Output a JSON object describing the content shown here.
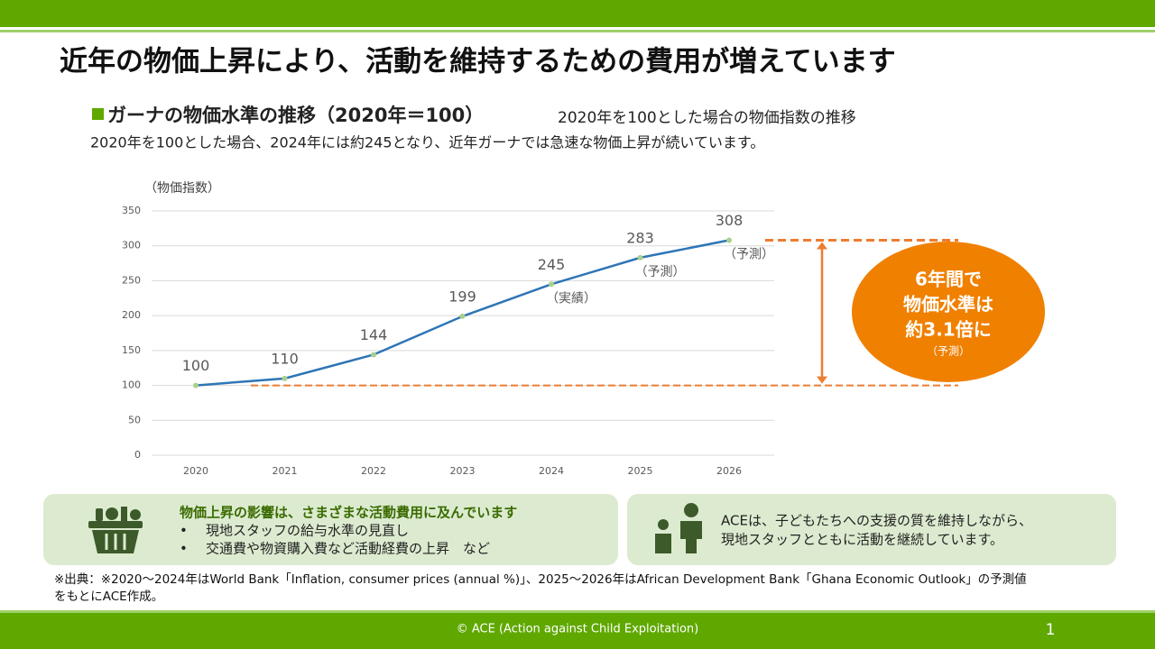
{
  "header": {
    "title": "近年の物価上昇により、活動を維持するための費用が増えています"
  },
  "section": {
    "heading": "ガーナの物価水準の推移（2020年＝100）",
    "note": "2020年を100とした場合の物価指数の推移",
    "description": "2020年を100とした場合、2024年には約245となり、近年ガーナでは急速な物価上昇が続いています。"
  },
  "chart_data": {
    "type": "line",
    "y_axis_label": "（物価指数）",
    "categories": [
      "2020",
      "2021",
      "2022",
      "2023",
      "2024",
      "2025",
      "2026"
    ],
    "values": [
      100,
      110,
      144,
      199,
      245,
      283,
      308
    ],
    "color": "#2e75b6",
    "marker_color": "#a9d18e",
    "ylim": [
      0,
      350
    ],
    "yticks": [
      0,
      50,
      100,
      150,
      200,
      250,
      300,
      350
    ],
    "grid": true,
    "annotations": [
      {
        "x": "2024",
        "text": "（実績）"
      },
      {
        "x": "2025",
        "text": "（予測）"
      },
      {
        "x": "2026",
        "text": "（予測）"
      }
    ]
  },
  "callout": {
    "lines": [
      "6年間で",
      "物価水準は",
      "約3.1倍に"
    ],
    "note": "（予測）"
  },
  "impact_box": {
    "title": "物価上昇の影響は、さまざまな活動費用に及んでいます",
    "items": [
      "現地スタッフの給与水準の見直し",
      "交通費や物資購入費など活動経費の上昇　など"
    ]
  },
  "ace_box": {
    "lines": [
      "ACEは、子どもたちへの支援の質を維持しながら、",
      "現地スタッフとともに活動を継続しています。"
    ]
  },
  "source": {
    "lines": [
      "※出典：※2020～2024年はWorld Bank「Inflation, consumer prices (annual %)」、2025～2026年はAfrican Development Bank「Ghana Economic Outlook」の予測値",
      "をもとにACE作成。"
    ]
  },
  "footer": {
    "copyright": "© ACE (Action against Child Exploitation)",
    "page": "1"
  }
}
